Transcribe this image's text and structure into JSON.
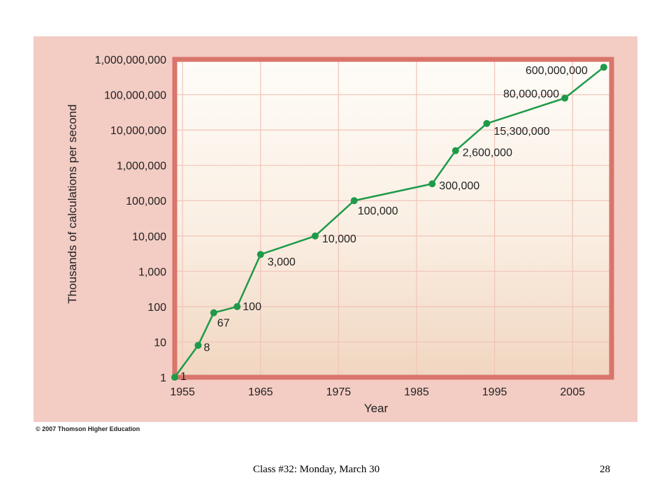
{
  "chart_data": {
    "type": "line",
    "title": "",
    "xlabel": "Year",
    "ylabel": "Thousands of calculations per second",
    "y_scale": "log",
    "xlim": [
      1955,
      2010
    ],
    "ylim": [
      1,
      1000000000
    ],
    "x_ticks": [
      1955,
      1965,
      1975,
      1985,
      1995,
      2005
    ],
    "x_tick_labels": [
      "1955",
      "1965",
      "1975",
      "1985",
      "1995",
      "2005"
    ],
    "y_ticks": [
      1,
      10,
      100,
      1000,
      10000,
      100000,
      1000000,
      10000000,
      100000000,
      1000000000
    ],
    "y_tick_labels": [
      "1",
      "10",
      "100",
      "1,000",
      "10,000",
      "100,000",
      "1,000,000",
      "10,000,000",
      "100,000,000",
      "1,000,000,000"
    ],
    "grid": true,
    "series_color": "#1f9a4a",
    "points": [
      {
        "x": 1954,
        "y": 1,
        "label": "1"
      },
      {
        "x": 1957,
        "y": 8,
        "label": "8"
      },
      {
        "x": 1959,
        "y": 67,
        "label": "67"
      },
      {
        "x": 1962,
        "y": 100,
        "label": "100"
      },
      {
        "x": 1965,
        "y": 3000,
        "label": "3,000"
      },
      {
        "x": 1972,
        "y": 10000,
        "label": "10,000"
      },
      {
        "x": 1977,
        "y": 100000,
        "label": "100,000"
      },
      {
        "x": 1987,
        "y": 300000,
        "label": "300,000"
      },
      {
        "x": 1990,
        "y": 2600000,
        "label": "2,600,000"
      },
      {
        "x": 1994,
        "y": 15300000,
        "label": "15,300,000"
      },
      {
        "x": 2004,
        "y": 80000000,
        "label": "80,000,000"
      },
      {
        "x": 2009,
        "y": 600000000,
        "label": "600,000,000"
      }
    ]
  },
  "copyright": "© 2007 Thomson Higher Education",
  "footer": {
    "left": "Class #32: Monday, March 30",
    "right": "28"
  },
  "colors": {
    "panel_background": "#f3ccc4",
    "plot_border": "#d9756b",
    "grid": "#f0c4b8",
    "line": "#1f9a4a"
  }
}
